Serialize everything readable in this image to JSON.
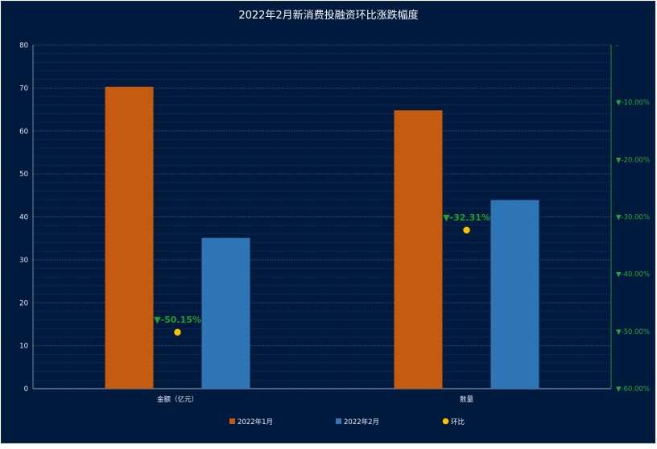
{
  "chart_data": {
    "type": "bar",
    "title": "2022年2月新消费投融资环比涨跌幅度",
    "categories": [
      "金额（亿元）",
      "数量"
    ],
    "series": [
      {
        "name": "2022年1月",
        "type": "bar",
        "axis": "left",
        "color": "#c55a11",
        "values": [
          70.3,
          64.8
        ]
      },
      {
        "name": "2022年2月",
        "type": "bar",
        "axis": "left",
        "color": "#2e75b6",
        "values": [
          35.1,
          43.9
        ]
      },
      {
        "name": "环比",
        "type": "scatter",
        "axis": "right",
        "color": "#ffc000",
        "values": [
          -50.15,
          -32.31
        ],
        "labels": [
          "▼-50.15%",
          "▼-32.31%"
        ]
      }
    ],
    "y_left": {
      "range": [
        0,
        80
      ],
      "ticks": [
        "0",
        "10",
        "20",
        "30",
        "40",
        "50",
        "60",
        "70",
        "80"
      ]
    },
    "y_right": {
      "range": [
        -60,
        0
      ],
      "ticks": [
        "▼-60.00%",
        "▼-50.00%",
        "▼-40.00%",
        "▼-30.00%",
        "▼-20.00%",
        "▼-10.00%",
        "-"
      ]
    },
    "grid": true,
    "legend_position": "bottom",
    "colors": {
      "background": "#001a3d",
      "grid": "#3a5a86",
      "right_axis": "#25a83a",
      "pct_label": "#1f9f2e"
    }
  }
}
